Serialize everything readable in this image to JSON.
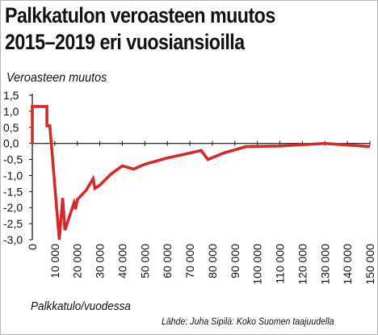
{
  "chart_data": {
    "type": "line",
    "title_line1": "Palkkatulon veroasteen muutos",
    "title_line2": "2015–2019 eri vuosiansioilla",
    "ylabel": "Veroasteen muutos",
    "xlabel": "Palkkatulo/vuodessa",
    "source": "Lähde: Juha Sipilä: Koko Suomen taajuudella",
    "xlim": [
      0,
      150000
    ],
    "ylim": [
      -3.0,
      1.5
    ],
    "x_ticks": [
      0,
      10000,
      20000,
      30000,
      40000,
      50000,
      60000,
      70000,
      80000,
      90000,
      100000,
      110000,
      120000,
      130000,
      140000,
      150000
    ],
    "x_tick_labels": [
      "0",
      "10 000",
      "20 000",
      "30 000",
      "40 000",
      "50 000",
      "60 000",
      "70 000",
      "80 000",
      "90 000",
      "100 000",
      "110 000",
      "120 000",
      "130 000",
      "140 000",
      "150 000"
    ],
    "y_ticks": [
      1.5,
      1.0,
      0.5,
      0.0,
      -0.5,
      -1.0,
      -1.5,
      -2.0,
      -2.5,
      -3.0
    ],
    "y_tick_labels": [
      "1,5",
      "1,0",
      "0,5",
      "0,0",
      "-0,5",
      "-1,0",
      "-1,5",
      "-2,0",
      "-2,5",
      "-3,0"
    ],
    "grid": false,
    "colors": {
      "line": "#d42a2a",
      "axis": "#111111"
    },
    "series": [
      {
        "points": [
          [
            0,
            0.0
          ],
          [
            0,
            1.15
          ],
          [
            6500,
            1.15
          ],
          [
            6500,
            0.55
          ],
          [
            7800,
            0.55
          ],
          [
            12000,
            -3.0
          ],
          [
            13500,
            -1.7
          ],
          [
            14500,
            -2.7
          ],
          [
            18500,
            -1.85
          ],
          [
            19200,
            -2.05
          ],
          [
            20000,
            -1.75
          ],
          [
            24000,
            -1.45
          ],
          [
            27000,
            -1.1
          ],
          [
            27800,
            -1.4
          ],
          [
            30000,
            -1.3
          ],
          [
            35000,
            -0.95
          ],
          [
            40000,
            -0.7
          ],
          [
            45000,
            -0.8
          ],
          [
            50000,
            -0.65
          ],
          [
            60000,
            -0.45
          ],
          [
            70000,
            -0.3
          ],
          [
            75000,
            -0.22
          ],
          [
            78000,
            -0.5
          ],
          [
            85000,
            -0.3
          ],
          [
            90000,
            -0.2
          ],
          [
            95000,
            -0.1
          ],
          [
            110000,
            -0.08
          ],
          [
            130000,
            0.0
          ],
          [
            150000,
            -0.1
          ]
        ]
      }
    ]
  }
}
